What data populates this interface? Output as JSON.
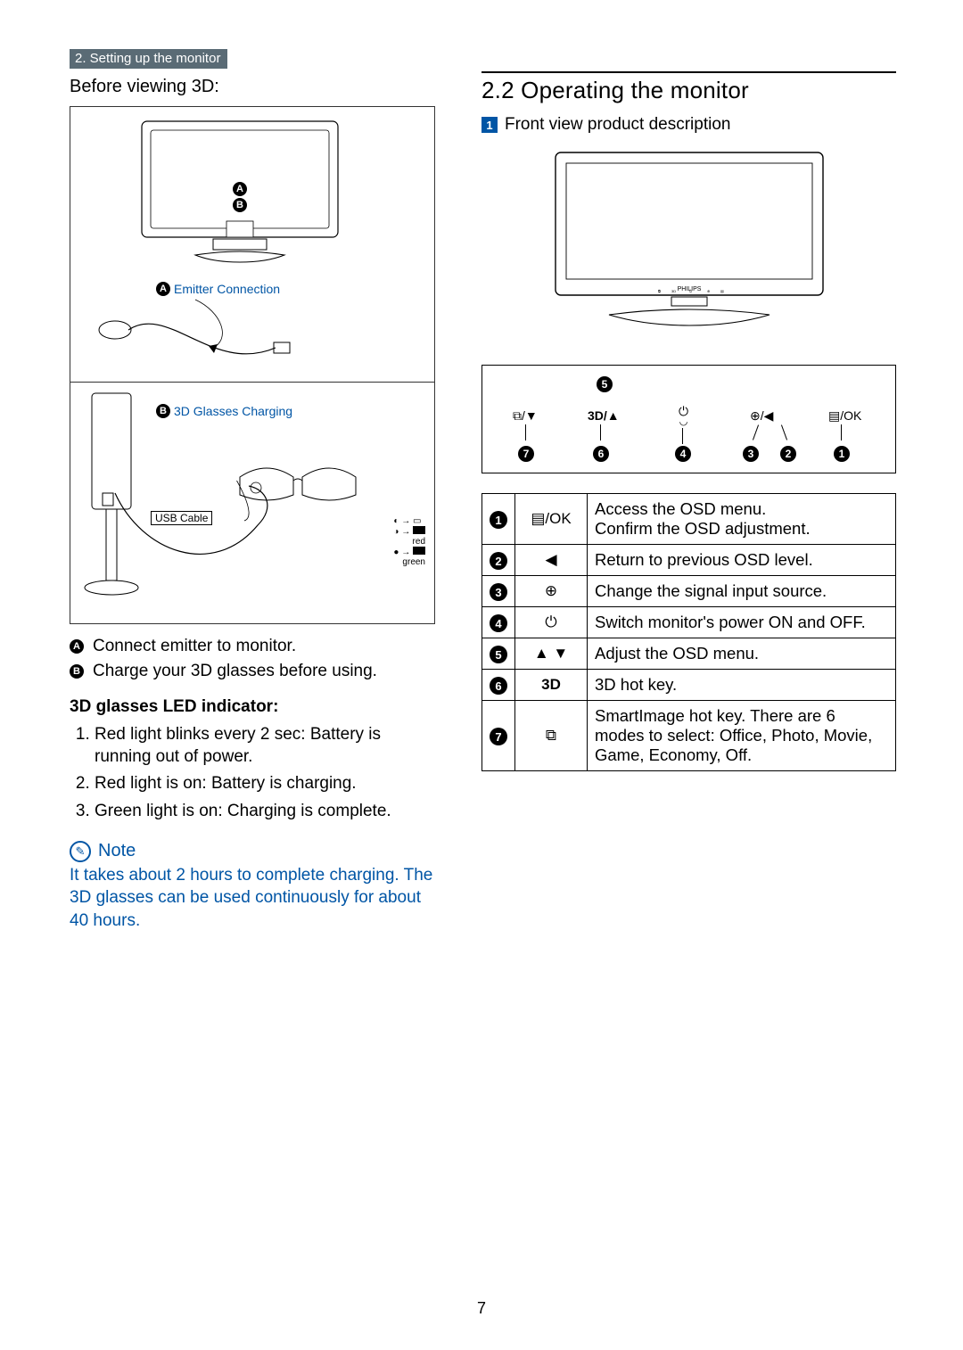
{
  "breadcrumb": "2. Setting up the monitor",
  "page_number": "7",
  "left": {
    "before_viewing": "Before viewing 3D:",
    "figA": {
      "letter_a": "A",
      "letter_b": "B",
      "emitter_label": "Emitter Connection"
    },
    "figB": {
      "letter": "B",
      "glasses_label": "3D Glasses Charging",
      "usb_label": "USB Cable",
      "led_red": "red",
      "led_green": "green"
    },
    "legend_a": "Connect emitter to monitor.",
    "legend_b": "Charge your 3D glasses before using.",
    "led_heading": "3D glasses LED indicator:",
    "led_items": [
      "Red light blinks every 2 sec: Battery is running out of power.",
      "Red light is on: Battery is charging.",
      "Green light is on: Charging is complete."
    ],
    "note_label": "Note",
    "note_body": "It takes about 2 hours to complete charging. The 3D glasses can be used continuously for about 40 hours."
  },
  "right": {
    "section_title": "2.2  Operating the monitor",
    "front_view": "Front view product description",
    "panel_symbols": [
      "⧉/▼",
      "3D/▲",
      "⏻",
      "⊕/◀",
      "▤/OK"
    ],
    "panel_nums_top": "5",
    "panel_nums_bottom": [
      "7",
      "6",
      "4",
      "3",
      "2",
      "1"
    ],
    "table": [
      {
        "n": "1",
        "sym": "▤/OK",
        "desc": "Access the OSD menu.\nConfirm the OSD adjustment."
      },
      {
        "n": "2",
        "sym": "◀",
        "desc": "Return to previous OSD level."
      },
      {
        "n": "3",
        "sym": "⊕",
        "desc": "Change the signal input source."
      },
      {
        "n": "4",
        "sym": "⏻",
        "desc": "Switch monitor's power ON and OFF."
      },
      {
        "n": "5",
        "sym": "▲ ▼",
        "desc": "Adjust the OSD menu."
      },
      {
        "n": "6",
        "sym": "3D",
        "desc": "3D hot key."
      },
      {
        "n": "7",
        "sym": "⧉",
        "desc": "SmartImage hot key. There are 6 modes to select: Office, Photo, Movie, Game, Economy, Off."
      }
    ]
  }
}
